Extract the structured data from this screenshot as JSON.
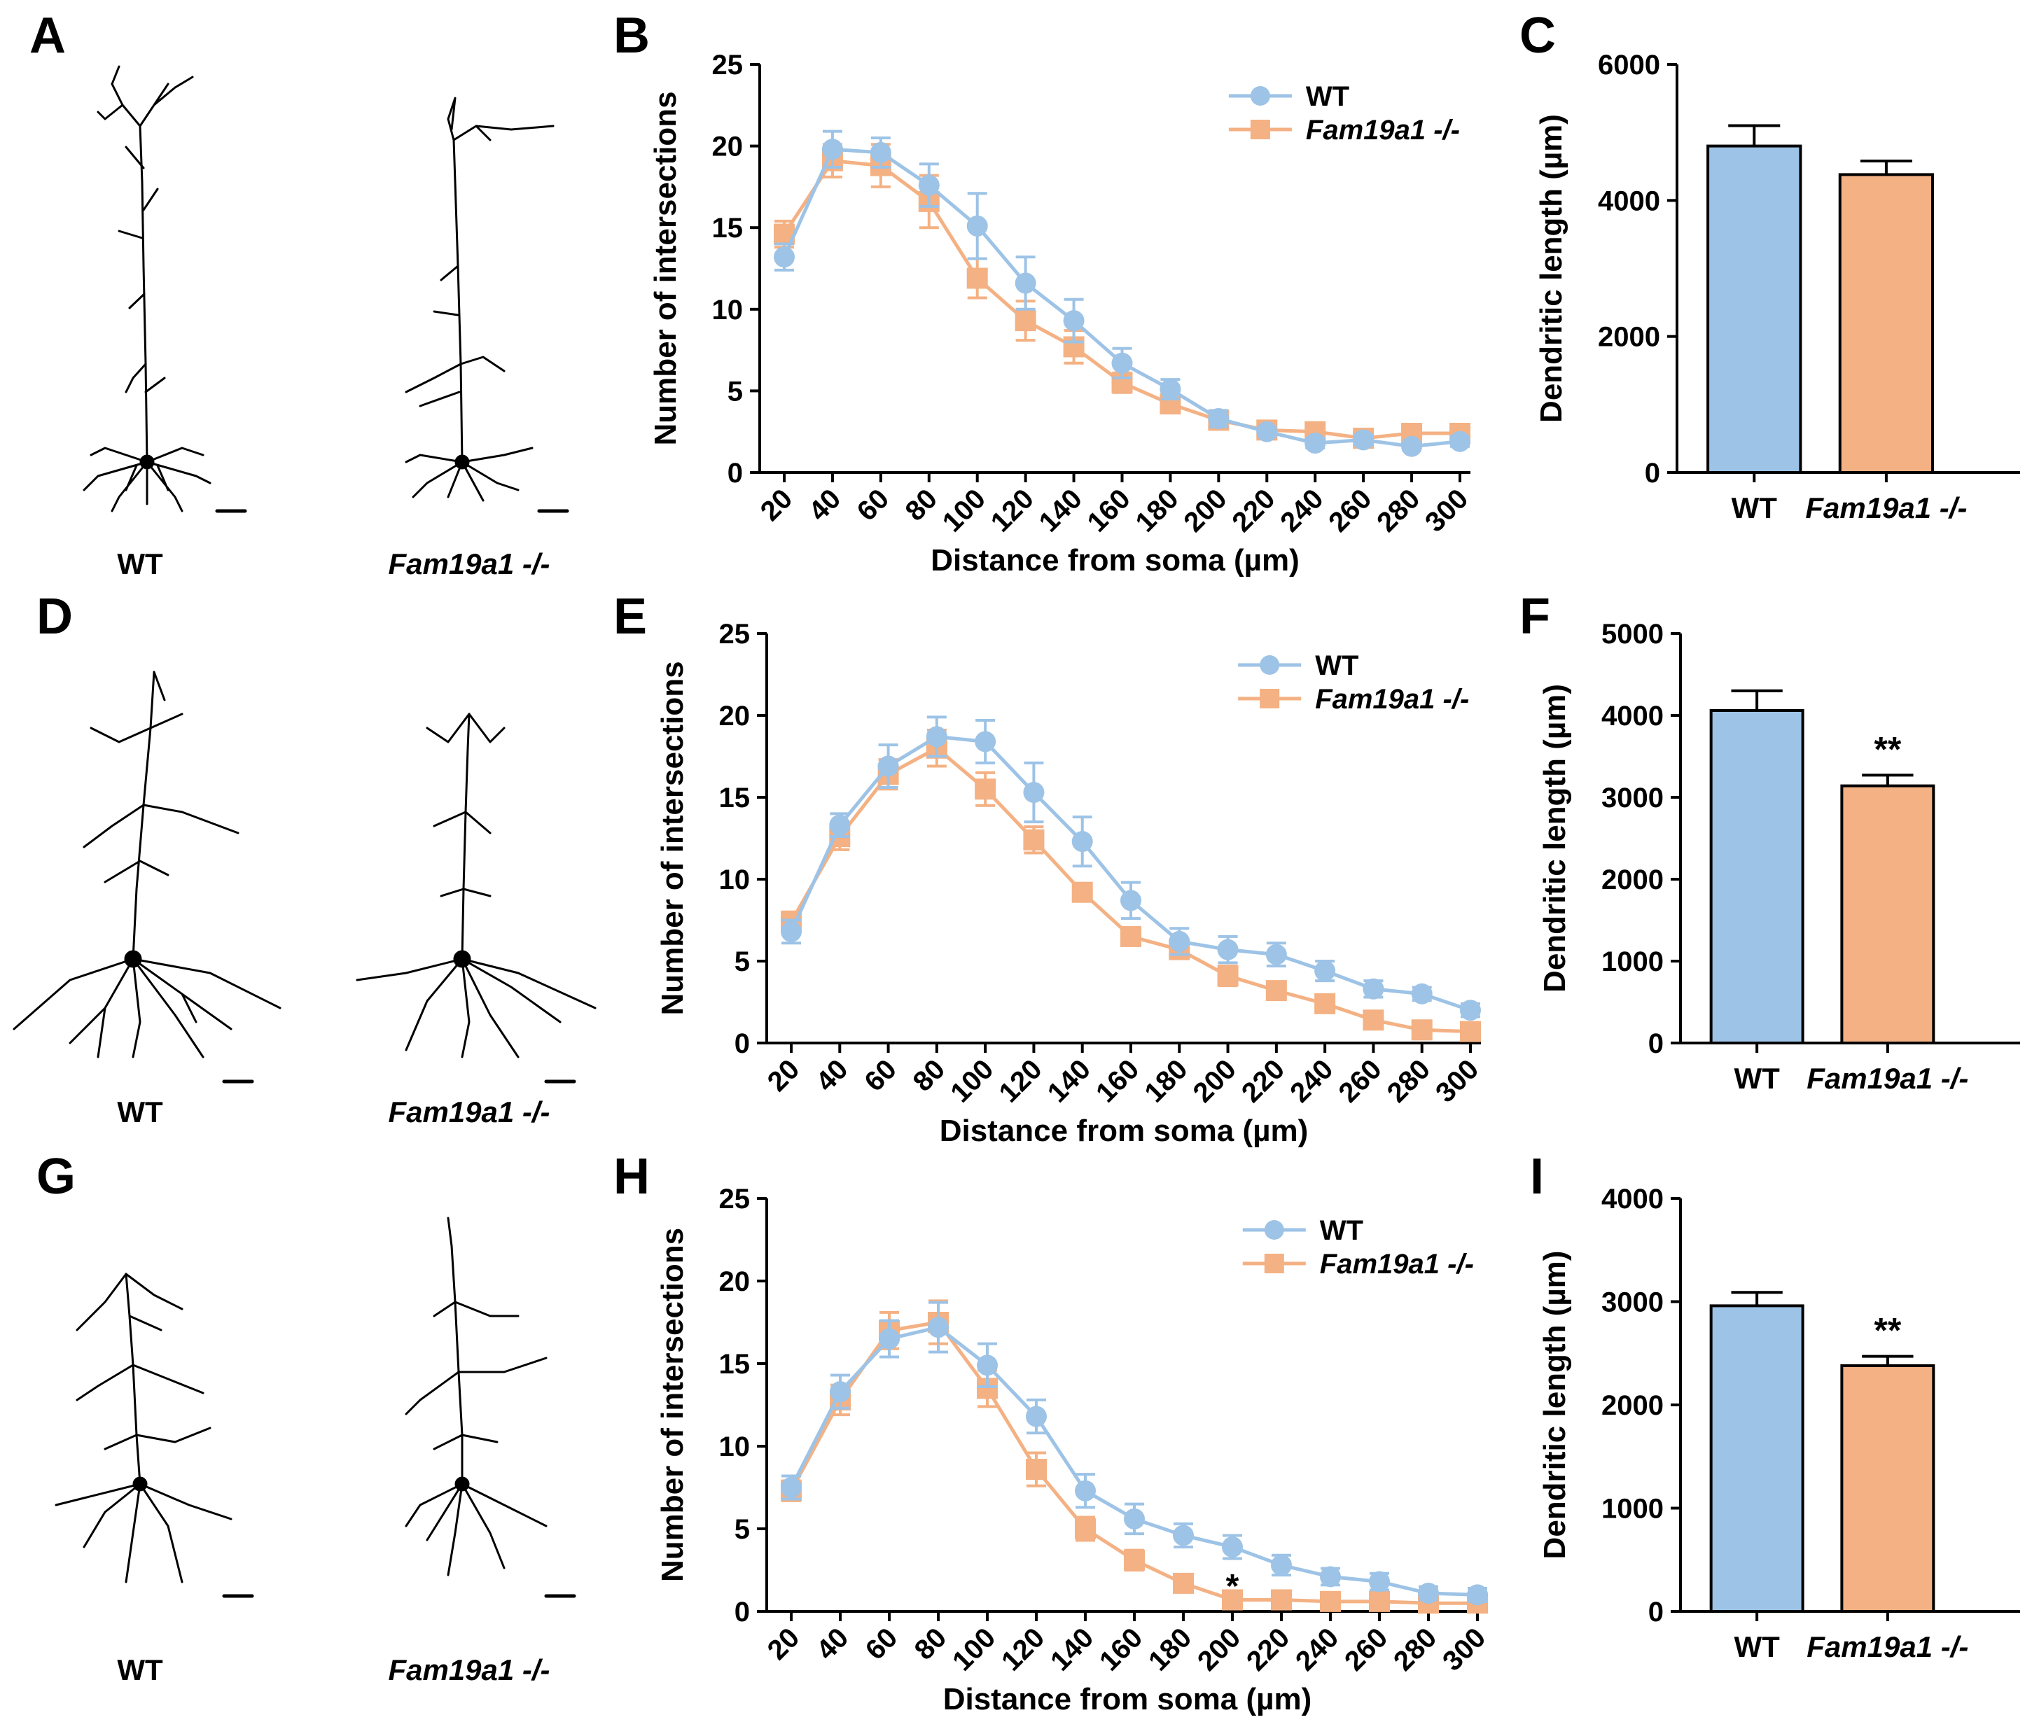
{
  "colors": {
    "wt": "#9dc3e6",
    "ko": "#f4b183",
    "axis": "#000000",
    "neuron": "#000000"
  },
  "panels": [
    {
      "letter": "A"
    },
    {
      "letter": "B"
    },
    {
      "letter": "C"
    },
    {
      "letter": "D"
    },
    {
      "letter": "E"
    },
    {
      "letter": "F"
    },
    {
      "letter": "G"
    },
    {
      "letter": "H"
    },
    {
      "letter": "I"
    }
  ],
  "tracings": {
    "wt_label": "WT",
    "ko_label": "Fam19a1 -/-"
  },
  "chart_data": [
    {
      "panel": "B",
      "type": "line",
      "xlabel": "Distance from soma (µm)",
      "ylabel": "Number of intersections",
      "x": [
        20,
        40,
        60,
        80,
        100,
        120,
        140,
        160,
        180,
        200,
        220,
        240,
        260,
        280,
        300
      ],
      "ylim": [
        0,
        25
      ],
      "yticks": [
        0,
        5,
        10,
        15,
        20,
        25
      ],
      "legend_position": "top-right",
      "series": [
        {
          "name": "WT",
          "values": [
            13.2,
            19.8,
            19.6,
            17.6,
            15.1,
            11.6,
            9.3,
            6.7,
            5.1,
            3.3,
            2.5,
            1.8,
            2.0,
            1.6,
            1.9
          ],
          "errors": [
            0.8,
            1.1,
            0.9,
            1.3,
            2.0,
            1.6,
            1.3,
            0.9,
            0.6,
            0.5,
            0.3,
            0.3,
            0.3,
            0.2,
            0.3
          ]
        },
        {
          "name": "Fam19a1 -/-",
          "values": [
            14.6,
            19.1,
            18.8,
            16.6,
            11.9,
            9.3,
            7.7,
            5.5,
            4.2,
            3.2,
            2.6,
            2.5,
            2.1,
            2.4,
            2.4
          ],
          "errors": [
            0.8,
            1.0,
            1.3,
            1.6,
            1.2,
            1.2,
            1.0,
            0.6,
            0.5,
            0.4,
            0.3,
            0.3,
            0.4,
            0.3,
            0.3
          ]
        }
      ],
      "annotations": []
    },
    {
      "panel": "C",
      "type": "bar",
      "ylabel": "Dendritic length (µm)",
      "categories": [
        "WT",
        "Fam19a1 -/-"
      ],
      "values": [
        4800,
        4380
      ],
      "errors": [
        300,
        200
      ],
      "ylim": [
        0,
        6000
      ],
      "yticks": [
        0,
        2000,
        4000,
        6000
      ],
      "significance": [
        "",
        ""
      ]
    },
    {
      "panel": "E",
      "type": "line",
      "xlabel": "Distance from soma (µm)",
      "ylabel": "Number of intersections",
      "x": [
        20,
        40,
        60,
        80,
        100,
        120,
        140,
        160,
        180,
        200,
        220,
        240,
        260,
        280,
        300
      ],
      "ylim": [
        0,
        25
      ],
      "yticks": [
        0,
        5,
        10,
        15,
        20,
        25
      ],
      "legend_position": "top-right",
      "series": [
        {
          "name": "WT",
          "values": [
            6.8,
            13.3,
            16.9,
            18.7,
            18.4,
            15.3,
            12.3,
            8.7,
            6.2,
            5.7,
            5.4,
            4.4,
            3.3,
            3.0,
            2.0
          ],
          "errors": [
            0.7,
            0.7,
            1.3,
            1.2,
            1.3,
            1.8,
            1.5,
            1.1,
            0.8,
            0.8,
            0.7,
            0.6,
            0.5,
            0.4,
            0.4
          ]
        },
        {
          "name": "Fam19a1 -/-",
          "values": [
            7.4,
            12.6,
            16.4,
            18.0,
            15.5,
            12.4,
            9.2,
            6.5,
            5.7,
            4.1,
            3.2,
            2.4,
            1.4,
            0.8,
            0.7
          ],
          "errors": [
            0.6,
            0.8,
            0.9,
            1.1,
            1.0,
            0.8,
            0.5,
            0.4,
            0.5,
            0.6,
            0.5,
            0.4,
            0.3,
            0.2,
            0.2
          ]
        }
      ],
      "annotations": []
    },
    {
      "panel": "F",
      "type": "bar",
      "ylabel": "Dendritic length (µm)",
      "categories": [
        "WT",
        "Fam19a1 -/-"
      ],
      "values": [
        4060,
        3140
      ],
      "errors": [
        240,
        130
      ],
      "ylim": [
        0,
        5000
      ],
      "yticks": [
        0,
        1000,
        2000,
        3000,
        4000,
        5000
      ],
      "significance": [
        "",
        "**"
      ]
    },
    {
      "panel": "H",
      "type": "line",
      "xlabel": "Distance from soma (µm)",
      "ylabel": "Number of intersections",
      "x": [
        20,
        40,
        60,
        80,
        100,
        120,
        140,
        160,
        180,
        200,
        220,
        240,
        260,
        280,
        300
      ],
      "ylim": [
        0,
        25
      ],
      "yticks": [
        0,
        5,
        10,
        15,
        20,
        25
      ],
      "legend_position": "top-right",
      "series": [
        {
          "name": "WT",
          "values": [
            7.5,
            13.3,
            16.5,
            17.2,
            14.9,
            11.8,
            7.3,
            5.6,
            4.6,
            3.9,
            2.8,
            2.1,
            1.8,
            1.1,
            1.0
          ],
          "errors": [
            0.7,
            1.0,
            1.1,
            1.5,
            1.3,
            1.0,
            1.0,
            0.9,
            0.7,
            0.7,
            0.6,
            0.5,
            0.5,
            0.4,
            0.4
          ]
        },
        {
          "name": "Fam19a1 -/-",
          "values": [
            7.3,
            12.8,
            17.0,
            17.5,
            13.5,
            8.6,
            5.0,
            3.1,
            1.7,
            0.7,
            0.7,
            0.6,
            0.6,
            0.5,
            0.5
          ],
          "errors": [
            0.6,
            0.9,
            1.1,
            1.3,
            1.1,
            1.0,
            0.7,
            0.6,
            0.4,
            0.3,
            0.3,
            0.3,
            0.3,
            0.2,
            0.2
          ]
        }
      ],
      "annotations": [
        {
          "x": 200,
          "text": "*"
        }
      ]
    },
    {
      "panel": "I",
      "type": "bar",
      "ylabel": "Dendritic length (µm)",
      "categories": [
        "WT",
        "Fam19a1 -/-"
      ],
      "values": [
        2960,
        2380
      ],
      "errors": [
        130,
        90
      ],
      "ylim": [
        0,
        4000
      ],
      "yticks": [
        0,
        1000,
        2000,
        3000,
        4000
      ],
      "significance": [
        "",
        "**"
      ]
    }
  ]
}
